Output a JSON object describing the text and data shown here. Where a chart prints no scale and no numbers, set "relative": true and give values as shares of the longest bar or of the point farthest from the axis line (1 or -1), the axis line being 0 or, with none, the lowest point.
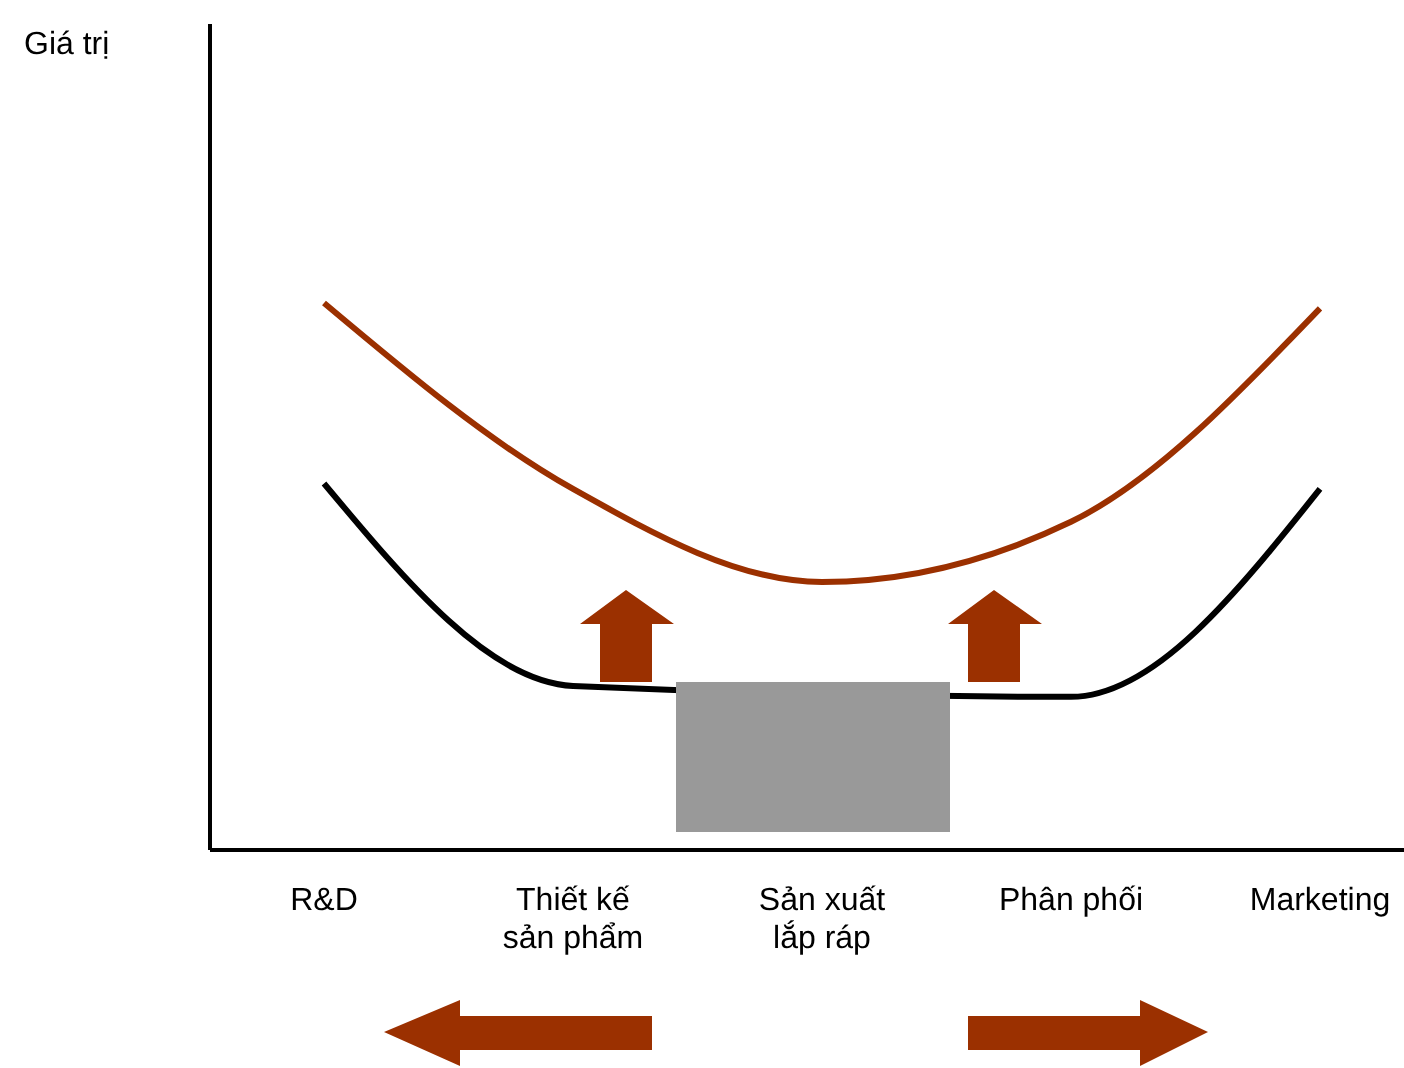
{
  "chart_data": {
    "type": "line",
    "annotations": [
      "Giá trị"
    ],
    "categories": [
      "R&D",
      "Thiết kế sản phẩm",
      "Sản xuất lắp ráp",
      "Phân phối",
      "Marketing"
    ],
    "relative": true,
    "series": [
      {
        "color": "#9b3000",
        "values": [
          1,
          0.66,
          0.49,
          0.6,
          0.99
        ]
      },
      {
        "color": "#000000",
        "values": [
          0.67,
          0.3,
          null,
          0.28,
          0.66
        ]
      }
    ]
  }
}
